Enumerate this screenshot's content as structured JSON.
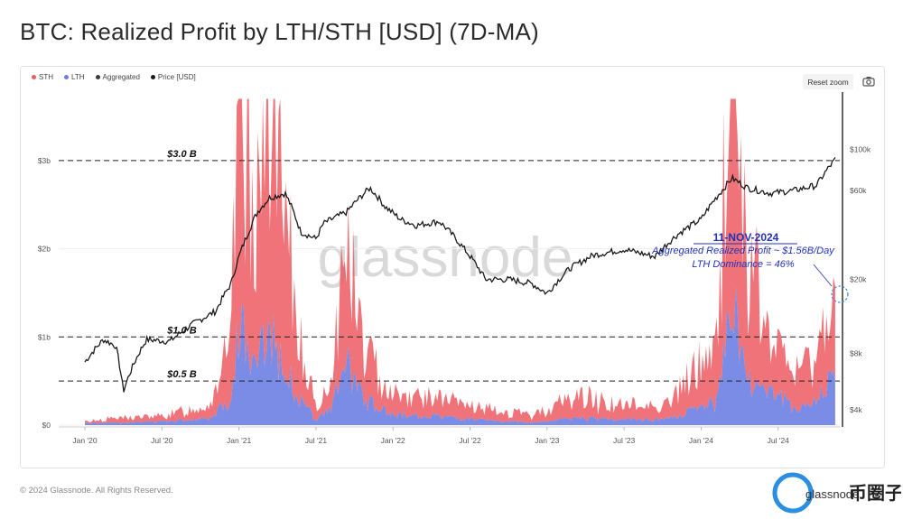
{
  "page": {
    "title": "BTC: Realized Profit by LTH/STH [USD] (7D-MA)",
    "footer": "© 2024 Glassnode. All Rights Reserved.",
    "reset_zoom": "Reset zoom",
    "watermark": "glassnode",
    "corner_logo_text": "币圈子"
  },
  "colors": {
    "sth": "#ec5b60",
    "lth": "#6b7fe3",
    "aggregated": "#3a3a3a",
    "price": "#1a1a1a",
    "annotation": "#2233bb"
  },
  "legend": [
    {
      "name": "STH",
      "color": "#ec5b60"
    },
    {
      "name": "LTH",
      "color": "#6b7fe3"
    },
    {
      "name": "Aggregated",
      "color": "#3a3a3a"
    },
    {
      "name": "Price [USD]",
      "color": "#1a1a1a"
    }
  ],
  "annotations": {
    "levels": [
      {
        "label": "$3.0 B",
        "value": 3.0
      },
      {
        "label": "$1.0 B",
        "value": 1.0
      },
      {
        "label": "$0.5 B",
        "value": 0.5
      }
    ],
    "event_date": "11-NOV-2024",
    "event_line1": "Aggregated Realized Profit ~ $1.56B/Day",
    "event_line2": "LTH Dominance = 46%"
  },
  "chart_data": {
    "type": "area",
    "title": "BTC: Realized Profit by LTH/STH [USD] (7D-MA)",
    "x_ticks": [
      "Jan '20",
      "Jul '20",
      "Jan '21",
      "Jul '21",
      "Jan '22",
      "Jul '22",
      "Jan '23",
      "Jul '23",
      "Jan '24",
      "Jul '24"
    ],
    "y_left_ticks": [
      "$0",
      "$1b",
      "$2b",
      "$3b"
    ],
    "y_left_range": [
      0,
      3.5
    ],
    "y_right_ticks": [
      "$4k",
      "$8k",
      "$20k",
      "$60k",
      "$100k"
    ],
    "y_right_scale": "log",
    "series": [
      {
        "name": "STH",
        "type": "stacked-area",
        "x": [
          2020.0,
          2020.2,
          2020.5,
          2020.8,
          2020.95,
          2021.0,
          2021.1,
          2021.2,
          2021.3,
          2021.4,
          2021.5,
          2021.6,
          2021.7,
          2021.8,
          2021.9,
          2022.0,
          2022.3,
          2022.6,
          2022.9,
          2023.2,
          2023.5,
          2023.8,
          2024.0,
          2024.1,
          2024.2,
          2024.3,
          2024.45,
          2024.6,
          2024.75,
          2024.85,
          2024.87
        ],
        "values": [
          0.02,
          0.05,
          0.06,
          0.15,
          0.6,
          3.3,
          1.8,
          2.6,
          1.5,
          0.7,
          0.1,
          0.35,
          1.4,
          0.6,
          0.4,
          0.25,
          0.2,
          0.12,
          0.08,
          0.25,
          0.15,
          0.18,
          0.5,
          0.6,
          3.1,
          1.4,
          0.55,
          0.4,
          0.5,
          1.1,
          0.84
        ]
      },
      {
        "name": "LTH",
        "type": "stacked-area",
        "x": [
          2020.0,
          2020.2,
          2020.5,
          2020.8,
          2020.95,
          2021.0,
          2021.1,
          2021.2,
          2021.3,
          2021.4,
          2021.5,
          2021.6,
          2021.7,
          2021.8,
          2021.9,
          2022.0,
          2022.3,
          2022.6,
          2022.9,
          2023.2,
          2023.5,
          2023.8,
          2024.0,
          2024.1,
          2024.2,
          2024.3,
          2024.45,
          2024.6,
          2024.75,
          2024.85,
          2024.87
        ],
        "values": [
          0.02,
          0.03,
          0.04,
          0.08,
          0.3,
          1.2,
          0.6,
          1.1,
          0.6,
          0.3,
          0.05,
          0.2,
          0.7,
          0.3,
          0.2,
          0.12,
          0.1,
          0.05,
          0.03,
          0.08,
          0.06,
          0.07,
          0.2,
          0.25,
          1.4,
          0.5,
          0.4,
          0.2,
          0.25,
          0.6,
          0.72
        ]
      },
      {
        "name": "Price [USD]",
        "type": "line",
        "x": [
          2020.0,
          2020.12,
          2020.2,
          2020.25,
          2020.4,
          2020.55,
          2020.7,
          2020.85,
          2020.95,
          2021.05,
          2021.12,
          2021.2,
          2021.3,
          2021.4,
          2021.5,
          2021.55,
          2021.7,
          2021.85,
          2021.95,
          2022.05,
          2022.15,
          2022.3,
          2022.45,
          2022.6,
          2022.75,
          2022.9,
          2023.0,
          2023.15,
          2023.3,
          2023.5,
          2023.7,
          2023.85,
          2024.0,
          2024.15,
          2024.2,
          2024.3,
          2024.45,
          2024.6,
          2024.75,
          2024.87
        ],
        "values": [
          7200,
          9500,
          8800,
          5000,
          9500,
          9300,
          11500,
          13500,
          19000,
          34000,
          46000,
          55000,
          58000,
          36000,
          33000,
          40000,
          46000,
          62000,
          49000,
          42000,
          39000,
          41000,
          30000,
          20000,
          20000,
          19000,
          16800,
          23000,
          27000,
          29000,
          26500,
          35000,
          42000,
          62000,
          70000,
          62000,
          58000,
          60000,
          64000,
          88000
        ]
      }
    ]
  }
}
